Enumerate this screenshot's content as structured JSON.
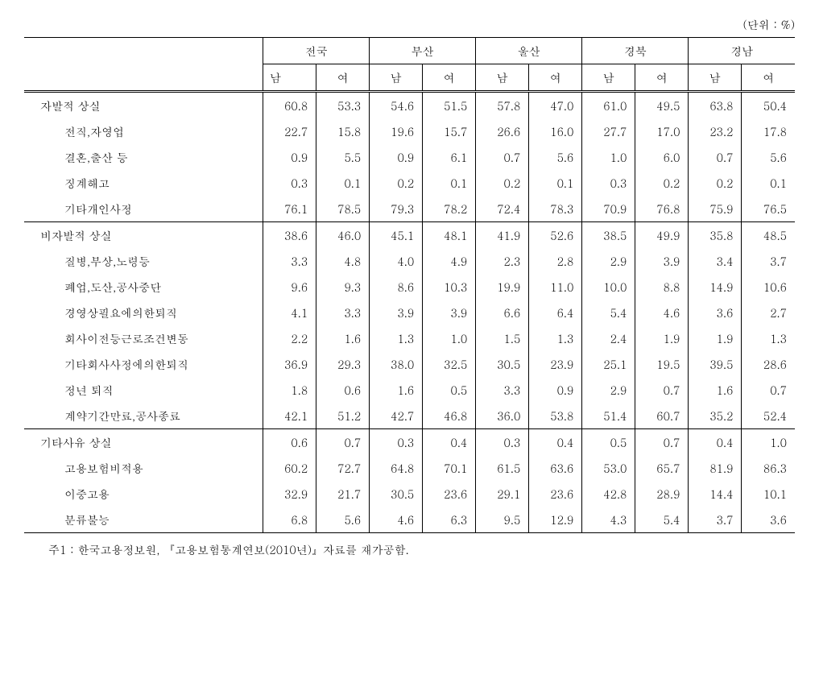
{
  "unit_label": "(단위 : %)",
  "regions": [
    "전국",
    "부산",
    "울산",
    "경북",
    "경남"
  ],
  "sub_headers": [
    "남",
    "여"
  ],
  "rows": [
    {
      "type": "section",
      "label": "자발적 상실",
      "values": [
        "60.8",
        "53.3",
        "54.6",
        "51.5",
        "57.8",
        "47.0",
        "61.0",
        "49.5",
        "63.8",
        "50.4"
      ]
    },
    {
      "type": "sub",
      "label": "전직,자영업",
      "values": [
        "22.7",
        "15.8",
        "19.6",
        "15.7",
        "26.6",
        "16.0",
        "27.7",
        "17.0",
        "23.2",
        "17.8"
      ]
    },
    {
      "type": "sub",
      "label": "결혼,출산 등",
      "values": [
        "0.9",
        "5.5",
        "0.9",
        "6.1",
        "0.7",
        "5.6",
        "1.0",
        "6.0",
        "0.7",
        "5.6"
      ]
    },
    {
      "type": "sub",
      "label": "징계해고",
      "values": [
        "0.3",
        "0.1",
        "0.2",
        "0.1",
        "0.2",
        "0.1",
        "0.3",
        "0.2",
        "0.2",
        "0.1"
      ]
    },
    {
      "type": "sub",
      "label": "기타개인사정",
      "values": [
        "76.1",
        "78.5",
        "79.3",
        "78.2",
        "72.4",
        "78.3",
        "70.9",
        "76.8",
        "75.9",
        "76.5"
      ]
    },
    {
      "type": "section",
      "label": "비자발적 상실",
      "values": [
        "38.6",
        "46.0",
        "45.1",
        "48.1",
        "41.9",
        "52.6",
        "38.5",
        "49.9",
        "35.8",
        "48.5"
      ]
    },
    {
      "type": "sub",
      "label": "질병,부상,노령등",
      "values": [
        "3.3",
        "4.8",
        "4.0",
        "4.9",
        "2.3",
        "2.8",
        "2.9",
        "3.9",
        "3.4",
        "3.7"
      ]
    },
    {
      "type": "sub",
      "label": "폐업,도산,공사중단",
      "values": [
        "9.6",
        "9.3",
        "8.6",
        "10.3",
        "19.9",
        "11.0",
        "10.0",
        "8.8",
        "14.9",
        "10.6"
      ]
    },
    {
      "type": "sub",
      "label": "경영상필요에의한퇴직",
      "values": [
        "4.1",
        "3.3",
        "3.9",
        "3.9",
        "6.6",
        "6.4",
        "5.4",
        "4.6",
        "3.6",
        "2.7"
      ]
    },
    {
      "type": "sub",
      "label": "회사이전등근로조건변동",
      "values": [
        "2.2",
        "1.6",
        "1.3",
        "1.0",
        "1.5",
        "1.3",
        "2.4",
        "1.9",
        "1.9",
        "1.3"
      ]
    },
    {
      "type": "sub",
      "label": "기타회사사정에의한퇴직",
      "values": [
        "36.9",
        "29.3",
        "38.0",
        "32.5",
        "30.5",
        "23.9",
        "25.1",
        "19.5",
        "39.5",
        "28.6"
      ]
    },
    {
      "type": "sub",
      "label": "정년 퇴직",
      "values": [
        "1.8",
        "0.6",
        "1.6",
        "0.5",
        "3.3",
        "0.9",
        "2.9",
        "0.7",
        "1.6",
        "0.7"
      ]
    },
    {
      "type": "sub",
      "label": "계약기간만료,공사종료",
      "values": [
        "42.1",
        "51.2",
        "42.7",
        "46.8",
        "36.0",
        "53.8",
        "51.4",
        "60.7",
        "35.2",
        "52.4"
      ]
    },
    {
      "type": "section",
      "label": "기타사유 상실",
      "values": [
        "0.6",
        "0.7",
        "0.3",
        "0.4",
        "0.3",
        "0.4",
        "0.5",
        "0.7",
        "0.4",
        "1.0"
      ]
    },
    {
      "type": "sub",
      "label": "고용보험비적용",
      "values": [
        "60.2",
        "72.7",
        "64.8",
        "70.1",
        "61.5",
        "63.6",
        "53.0",
        "65.7",
        "81.9",
        "86.3"
      ]
    },
    {
      "type": "sub",
      "label": "이중고용",
      "values": [
        "32.9",
        "21.7",
        "30.5",
        "23.6",
        "29.1",
        "23.6",
        "42.8",
        "28.9",
        "14.4",
        "10.1"
      ]
    },
    {
      "type": "sub",
      "label": "분류불능",
      "values": [
        "6.8",
        "5.6",
        "4.6",
        "6.3",
        "9.5",
        "12.9",
        "4.3",
        "5.4",
        "3.7",
        "3.6"
      ]
    }
  ],
  "footnote": "주1 : 한국고용정보원, 『고용보험통계연보(2010년)』자료를 재가공함."
}
